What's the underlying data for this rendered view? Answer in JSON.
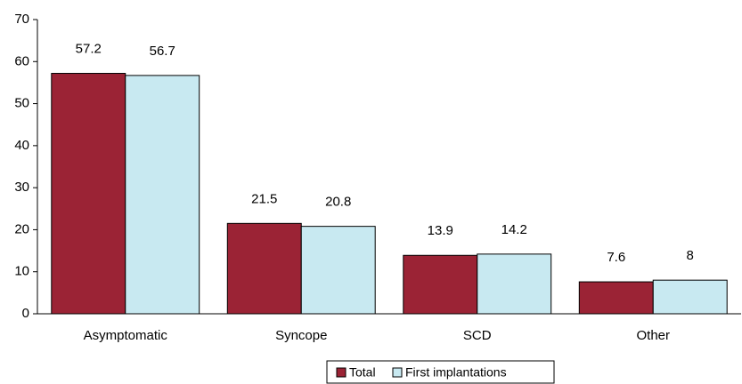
{
  "chart_data": {
    "type": "bar",
    "categories": [
      "Asymptomatic",
      "Syncope",
      "SCD",
      "Other"
    ],
    "series": [
      {
        "name": "Total",
        "color": "#9b2335",
        "values": [
          57.2,
          21.5,
          13.9,
          7.6
        ]
      },
      {
        "name": "First implantations",
        "color": "#c8e9f1",
        "values": [
          56.7,
          20.8,
          14.2,
          8
        ]
      }
    ],
    "ylim": [
      0,
      70
    ],
    "yticks": [
      0,
      10,
      20,
      30,
      40,
      50,
      60,
      70
    ],
    "grid": false,
    "legend": "bottom"
  }
}
